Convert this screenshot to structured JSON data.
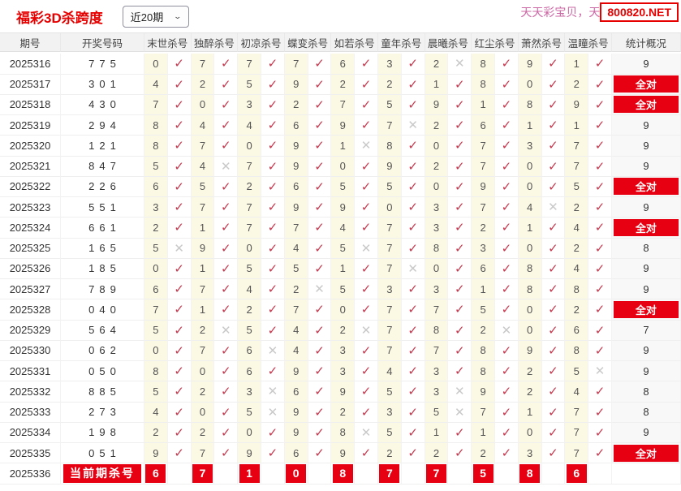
{
  "header": {
    "title": "福彩3D杀跨度",
    "range_selected": "近20期",
    "promo_text": "天天彩宝贝，天",
    "site_domain": "800820.NET"
  },
  "colors": {
    "accent_red": "#e60012",
    "title_red": "#e60000",
    "check_red": "#c5394f",
    "miss_gray": "#c9c9c9",
    "promo_pink": "#cc66a4",
    "num_cell_yellow": "#fbf8e3"
  },
  "icons": {
    "hit": "✓",
    "miss": "✕",
    "chevron_down": "⌄"
  },
  "table": {
    "headers": [
      "期号",
      "开奖号码",
      "末世杀号",
      "独醉杀号",
      "初凉杀号",
      "蝶变杀号",
      "如若杀号",
      "童年杀号",
      "晨曦杀号",
      "红尘杀号",
      "萧然杀号",
      "温瞳杀号",
      "统计概况"
    ],
    "all_correct_label": "全对",
    "rows": [
      {
        "period": "2025316",
        "draw": "775",
        "nums": [
          0,
          7,
          7,
          7,
          6,
          3,
          2,
          8,
          9,
          1
        ],
        "hits": [
          1,
          1,
          1,
          1,
          1,
          1,
          0,
          1,
          1,
          1
        ],
        "result": "9"
      },
      {
        "period": "2025317",
        "draw": "301",
        "nums": [
          4,
          2,
          5,
          9,
          2,
          2,
          1,
          8,
          0,
          2
        ],
        "hits": [
          1,
          1,
          1,
          1,
          1,
          1,
          1,
          1,
          1,
          1
        ],
        "result": "全对"
      },
      {
        "period": "2025318",
        "draw": "430",
        "nums": [
          7,
          0,
          3,
          2,
          7,
          5,
          9,
          1,
          8,
          9
        ],
        "hits": [
          1,
          1,
          1,
          1,
          1,
          1,
          1,
          1,
          1,
          1
        ],
        "result": "全对"
      },
      {
        "period": "2025319",
        "draw": "294",
        "nums": [
          8,
          4,
          4,
          6,
          9,
          7,
          2,
          6,
          1,
          1
        ],
        "hits": [
          1,
          1,
          1,
          1,
          1,
          0,
          1,
          1,
          1,
          1
        ],
        "result": "9"
      },
      {
        "period": "2025320",
        "draw": "121",
        "nums": [
          8,
          7,
          0,
          9,
          1,
          8,
          0,
          7,
          3,
          7
        ],
        "hits": [
          1,
          1,
          1,
          1,
          0,
          1,
          1,
          1,
          1,
          1
        ],
        "result": "9"
      },
      {
        "period": "2025321",
        "draw": "847",
        "nums": [
          5,
          4,
          7,
          9,
          0,
          9,
          2,
          7,
          0,
          7
        ],
        "hits": [
          1,
          0,
          1,
          1,
          1,
          1,
          1,
          1,
          1,
          1
        ],
        "result": "9"
      },
      {
        "period": "2025322",
        "draw": "226",
        "nums": [
          6,
          5,
          2,
          6,
          5,
          5,
          0,
          9,
          0,
          5
        ],
        "hits": [
          1,
          1,
          1,
          1,
          1,
          1,
          1,
          1,
          1,
          1
        ],
        "result": "全对"
      },
      {
        "period": "2025323",
        "draw": "551",
        "nums": [
          3,
          7,
          7,
          9,
          9,
          0,
          3,
          7,
          4,
          2
        ],
        "hits": [
          1,
          1,
          1,
          1,
          1,
          1,
          1,
          1,
          0,
          1
        ],
        "result": "9"
      },
      {
        "period": "2025324",
        "draw": "661",
        "nums": [
          2,
          1,
          7,
          7,
          4,
          7,
          3,
          2,
          1,
          4
        ],
        "hits": [
          1,
          1,
          1,
          1,
          1,
          1,
          1,
          1,
          1,
          1
        ],
        "result": "全对"
      },
      {
        "period": "2025325",
        "draw": "165",
        "nums": [
          5,
          9,
          0,
          4,
          5,
          7,
          8,
          3,
          0,
          2
        ],
        "hits": [
          0,
          1,
          1,
          1,
          0,
          1,
          1,
          1,
          1,
          1
        ],
        "result": "8"
      },
      {
        "period": "2025326",
        "draw": "185",
        "nums": [
          0,
          1,
          5,
          5,
          1,
          7,
          0,
          6,
          8,
          4
        ],
        "hits": [
          1,
          1,
          1,
          1,
          1,
          0,
          1,
          1,
          1,
          1
        ],
        "result": "9"
      },
      {
        "period": "2025327",
        "draw": "789",
        "nums": [
          6,
          7,
          4,
          2,
          5,
          3,
          3,
          1,
          8,
          8
        ],
        "hits": [
          1,
          1,
          1,
          0,
          1,
          1,
          1,
          1,
          1,
          1
        ],
        "result": "9"
      },
      {
        "period": "2025328",
        "draw": "040",
        "nums": [
          7,
          1,
          2,
          7,
          0,
          7,
          7,
          5,
          0,
          2
        ],
        "hits": [
          1,
          1,
          1,
          1,
          1,
          1,
          1,
          1,
          1,
          1
        ],
        "result": "全对"
      },
      {
        "period": "2025329",
        "draw": "564",
        "nums": [
          5,
          2,
          5,
          4,
          2,
          7,
          8,
          2,
          0,
          6
        ],
        "hits": [
          1,
          0,
          1,
          1,
          0,
          1,
          1,
          0,
          1,
          1
        ],
        "result": "7"
      },
      {
        "period": "2025330",
        "draw": "062",
        "nums": [
          0,
          7,
          6,
          4,
          3,
          7,
          7,
          8,
          9,
          8
        ],
        "hits": [
          1,
          1,
          0,
          1,
          1,
          1,
          1,
          1,
          1,
          1
        ],
        "result": "9"
      },
      {
        "period": "2025331",
        "draw": "050",
        "nums": [
          8,
          0,
          6,
          9,
          3,
          4,
          3,
          8,
          2,
          5
        ],
        "hits": [
          1,
          1,
          1,
          1,
          1,
          1,
          1,
          1,
          1,
          0
        ],
        "result": "9"
      },
      {
        "period": "2025332",
        "draw": "885",
        "nums": [
          5,
          2,
          3,
          6,
          9,
          5,
          3,
          9,
          2,
          4
        ],
        "hits": [
          1,
          1,
          0,
          1,
          1,
          1,
          0,
          1,
          1,
          1
        ],
        "result": "8"
      },
      {
        "period": "2025333",
        "draw": "273",
        "nums": [
          4,
          0,
          5,
          9,
          2,
          3,
          5,
          7,
          1,
          7
        ],
        "hits": [
          1,
          1,
          0,
          1,
          1,
          1,
          0,
          1,
          1,
          1
        ],
        "result": "8"
      },
      {
        "period": "2025334",
        "draw": "198",
        "nums": [
          2,
          2,
          0,
          9,
          8,
          5,
          1,
          1,
          0,
          7
        ],
        "hits": [
          1,
          1,
          1,
          1,
          0,
          1,
          1,
          1,
          1,
          1
        ],
        "result": "9"
      },
      {
        "period": "2025335",
        "draw": "051",
        "nums": [
          9,
          7,
          9,
          6,
          9,
          2,
          2,
          2,
          3,
          7
        ],
        "hits": [
          1,
          1,
          1,
          1,
          1,
          1,
          1,
          1,
          1,
          1
        ],
        "result": "全对"
      }
    ],
    "summary": {
      "period": "2025336",
      "label": "当前期杀号",
      "nums": [
        6,
        7,
        1,
        0,
        8,
        7,
        7,
        5,
        8,
        6
      ],
      "result": ""
    }
  }
}
